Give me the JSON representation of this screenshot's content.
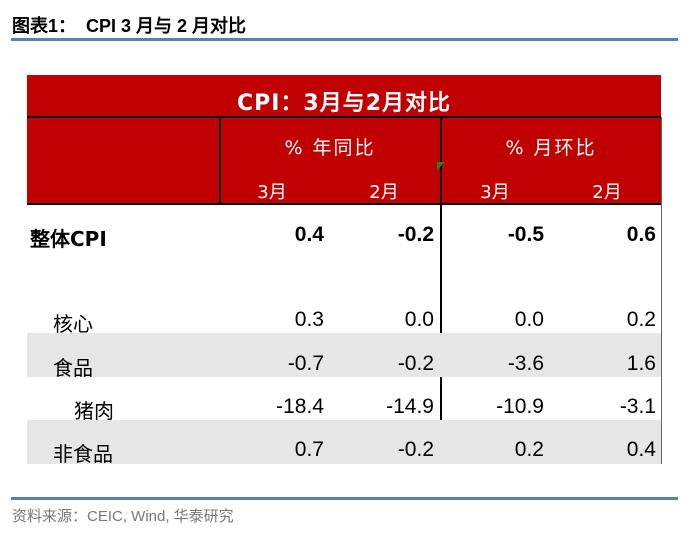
{
  "figure_title": "图表1：  CPI 3 月与 2 月对比",
  "table": {
    "title": "CPI：3月与2月对比",
    "groups": [
      "% 年同比",
      "% 月环比"
    ],
    "subheaders": [
      "3月",
      "2月",
      "3月",
      "2月"
    ],
    "rows": [
      {
        "label": "整体CPI",
        "values": [
          "0.4",
          "-0.2",
          "-0.5",
          "0.6"
        ]
      },
      {
        "label": "核心",
        "values": [
          "0.3",
          "0.0",
          "0.0",
          "0.2"
        ]
      },
      {
        "label": "食品",
        "values": [
          "-0.7",
          "-0.2",
          "-3.6",
          "1.6"
        ]
      },
      {
        "label": "猪肉",
        "values": [
          "-18.4",
          "-14.9",
          "-10.9",
          "-3.1"
        ]
      },
      {
        "label": "非食品",
        "values": [
          "0.7",
          "-0.2",
          "0.2",
          "0.4"
        ]
      }
    ],
    "colors": {
      "header_bg": "#c00000",
      "band_bg": "#e6e6e6",
      "rule": "#5b7fae"
    }
  },
  "source": "资料来源：CEIC, Wind,  华泰研究"
}
